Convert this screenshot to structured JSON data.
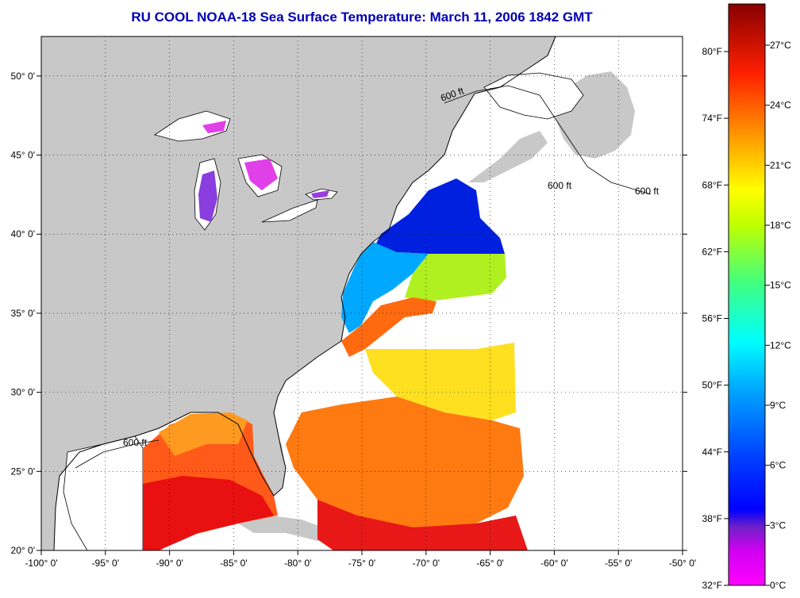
{
  "title": "RU COOL  NOAA-18  Sea Surface Temperature:  March 11, 2006 1842 GMT",
  "map": {
    "lon_labels": [
      "-100° 0'",
      "-95° 0'",
      "-90° 0'",
      "-85° 0'",
      "-80° 0'",
      "-75° 0'",
      "-70° 0'",
      "-65° 0'",
      "-60° 0'",
      "-55° 0'",
      "-50° 0'"
    ],
    "lat_labels": [
      "20° 0'",
      "25° 0'",
      "30° 0'",
      "35° 0'",
      "40° 0'",
      "45° 0'",
      "50° 0'"
    ],
    "lon_range": [
      -100,
      -50
    ],
    "lat_range": [
      20,
      52.5
    ],
    "contour_label": "600 ft",
    "land_color": "#c8c8c8",
    "no_data_color": "#ffffff"
  },
  "colorbar": {
    "fahrenheit_labels": [
      "80°F",
      "74°F",
      "68°F",
      "62°F",
      "56°F",
      "50°F",
      "44°F",
      "38°F",
      "32°F"
    ],
    "celsius_labels": [
      "27°C",
      "24°C",
      "21°C",
      "18°C",
      "15°C",
      "12°C",
      "9°C",
      "6°C",
      "3°C",
      "0°C"
    ],
    "gradient_colors": [
      "#8b0000",
      "#ff0000",
      "#ff8000",
      "#ffff00",
      "#80ff40",
      "#00ffff",
      "#0080ff",
      "#0000ff",
      "#8020c0",
      "#ff00ff"
    ]
  }
}
